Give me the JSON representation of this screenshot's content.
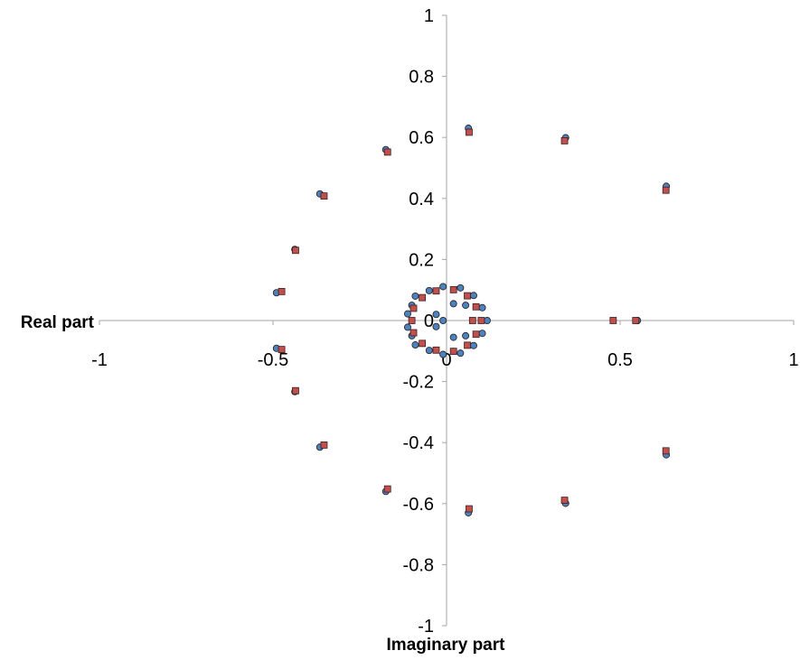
{
  "chart_data": {
    "type": "scatter",
    "title": "",
    "xlabel": "Real part",
    "ylabel": "Imaginary part",
    "xlim": [
      -1,
      1
    ],
    "ylim": [
      -1,
      1
    ],
    "x_ticks": [
      -1,
      -0.5,
      0,
      0.5,
      1
    ],
    "x_tick_labels": [
      "-1",
      "-0.5",
      "0",
      "0.5",
      "1"
    ],
    "y_ticks": [
      -1,
      -0.8,
      -0.6,
      -0.4,
      -0.2,
      0,
      0.2,
      0.4,
      0.6,
      0.8,
      1
    ],
    "y_tick_labels": [
      "-1",
      "-0.8",
      "-0.6",
      "-0.4",
      "-0.2",
      "0",
      "0.2",
      "0.4",
      "0.6",
      "0.8",
      "1"
    ],
    "grid": false,
    "legend": "none",
    "series": [
      {
        "marker": "circle",
        "color": "#4f81bd",
        "points": [
          [
            0.063,
            0.63
          ],
          [
            0.343,
            0.599
          ],
          [
            0.633,
            0.44
          ],
          [
            0.633,
            -0.44
          ],
          [
            0.343,
            -0.599
          ],
          [
            0.063,
            -0.63
          ],
          [
            -0.175,
            0.56
          ],
          [
            -0.365,
            0.415
          ],
          [
            -0.437,
            0.233
          ],
          [
            -0.49,
            0.091
          ],
          [
            -0.49,
            -0.091
          ],
          [
            -0.437,
            -0.233
          ],
          [
            -0.365,
            -0.415
          ],
          [
            -0.175,
            -0.56
          ],
          [
            0.55,
            0.0
          ],
          [
            0.117,
            0.0
          ],
          [
            0.103,
            0.042
          ],
          [
            0.103,
            -0.042
          ],
          [
            0.078,
            0.082
          ],
          [
            0.078,
            -0.082
          ],
          [
            0.04,
            0.107
          ],
          [
            0.04,
            -0.107
          ],
          [
            -0.01,
            0.111
          ],
          [
            -0.01,
            -0.111
          ],
          [
            -0.05,
            0.098
          ],
          [
            -0.05,
            -0.098
          ],
          [
            -0.09,
            0.08
          ],
          [
            -0.09,
            -0.08
          ],
          [
            -0.1,
            0.05
          ],
          [
            -0.1,
            -0.05
          ],
          [
            -0.112,
            0.022
          ],
          [
            -0.112,
            -0.022
          ],
          [
            0.055,
            0.05
          ],
          [
            0.055,
            -0.05
          ],
          [
            0.02,
            0.055
          ],
          [
            0.02,
            -0.055
          ],
          [
            -0.03,
            0.02
          ],
          [
            -0.03,
            -0.02
          ],
          [
            -0.01,
            0.0
          ]
        ]
      },
      {
        "marker": "square",
        "color": "#c0504d",
        "points": [
          [
            0.065,
            0.617
          ],
          [
            0.34,
            0.589
          ],
          [
            0.632,
            0.427
          ],
          [
            0.632,
            -0.427
          ],
          [
            0.34,
            -0.589
          ],
          [
            0.065,
            -0.617
          ],
          [
            -0.17,
            0.552
          ],
          [
            -0.353,
            0.408
          ],
          [
            -0.435,
            0.23
          ],
          [
            -0.475,
            0.095
          ],
          [
            -0.475,
            -0.095
          ],
          [
            -0.435,
            -0.23
          ],
          [
            -0.353,
            -0.408
          ],
          [
            -0.17,
            -0.552
          ],
          [
            0.48,
            0.0
          ],
          [
            0.545,
            0.0
          ],
          [
            -0.1,
            0.0
          ],
          [
            -0.095,
            0.04
          ],
          [
            -0.095,
            -0.04
          ],
          [
            -0.07,
            0.075
          ],
          [
            -0.07,
            -0.075
          ],
          [
            -0.03,
            0.097
          ],
          [
            -0.03,
            -0.097
          ],
          [
            0.02,
            0.101
          ],
          [
            0.02,
            -0.101
          ],
          [
            0.06,
            0.081
          ],
          [
            0.06,
            -0.081
          ],
          [
            0.085,
            0.045
          ],
          [
            0.085,
            -0.045
          ],
          [
            0.1,
            0.0
          ],
          [
            0.075,
            0.0
          ]
        ]
      }
    ]
  }
}
